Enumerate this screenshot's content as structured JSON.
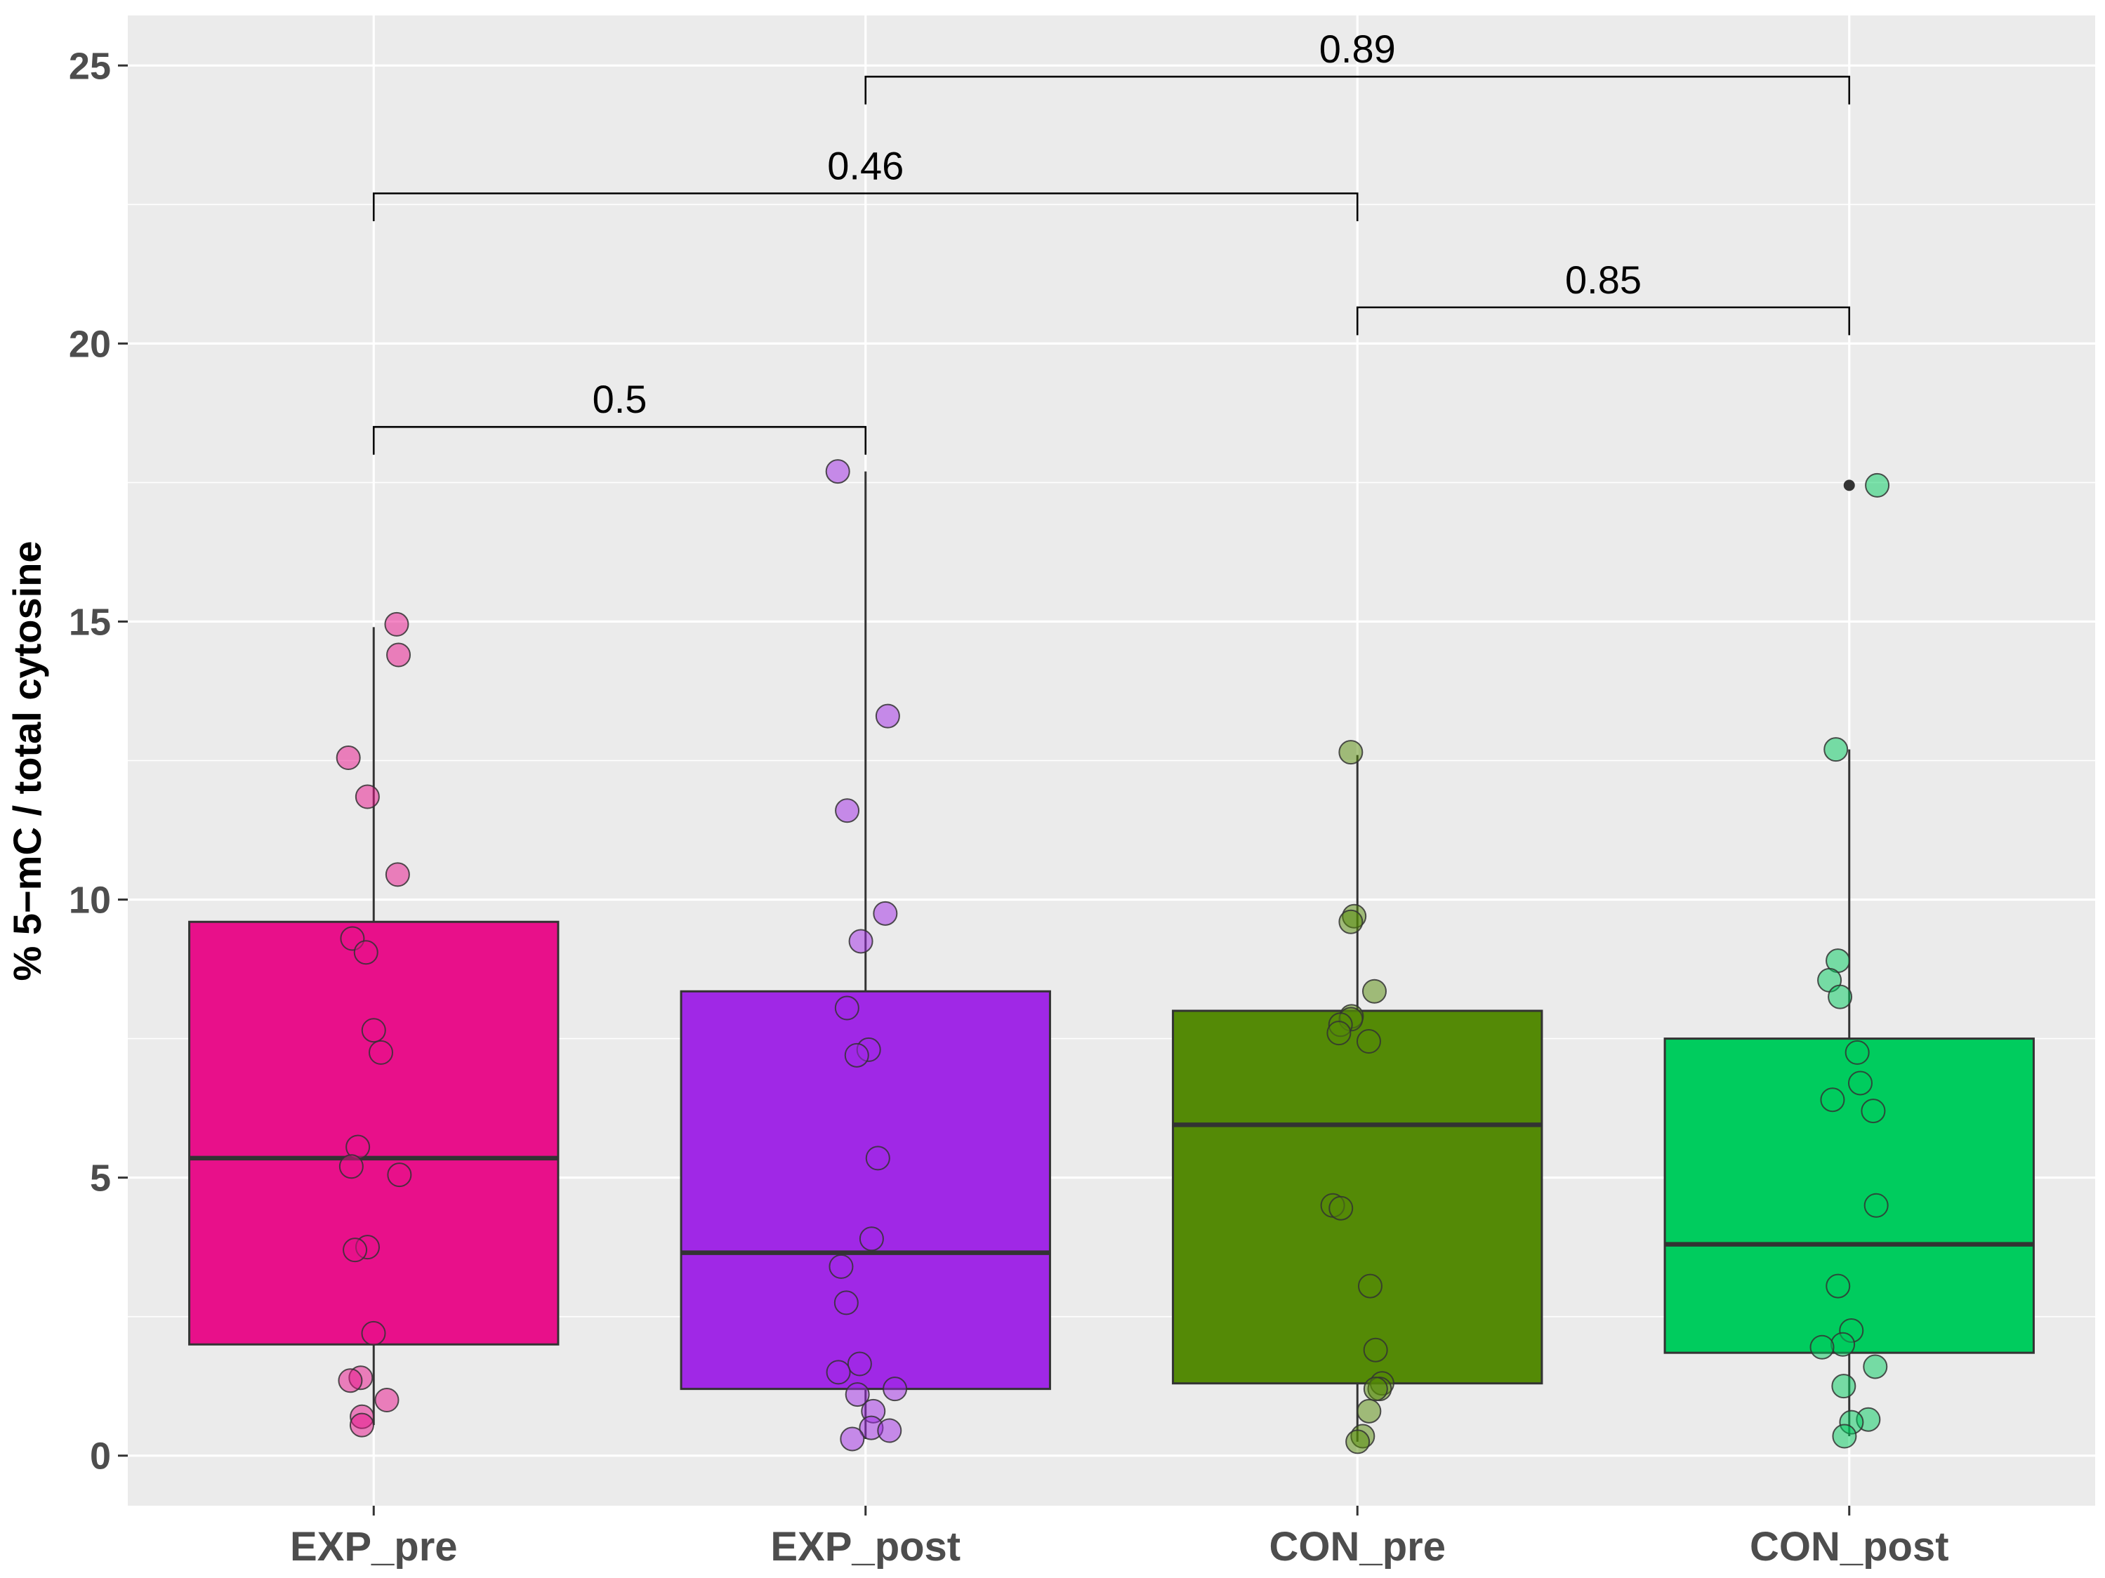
{
  "chart_data": {
    "type": "box",
    "ylabel": "% 5−mC / total cytosine",
    "xlabel": "",
    "ylim": [
      -0.9,
      25.9
    ],
    "yticks": [
      0,
      5,
      10,
      15,
      20,
      25
    ],
    "grid": true,
    "legend": "none",
    "categories": [
      "EXP_pre",
      "EXP_post",
      "CON_pre",
      "CON_post"
    ],
    "groups": [
      {
        "name": "EXP_pre",
        "color": "#e8108a",
        "q1": 2.0,
        "median": 5.35,
        "q3": 9.6,
        "whisker_low": 0.55,
        "whisker_high": 14.9,
        "outliers": [],
        "points": [
          14.95,
          14.4,
          12.55,
          11.85,
          10.45,
          9.3,
          9.05,
          7.65,
          7.25,
          5.55,
          5.2,
          5.05,
          3.75,
          3.7,
          2.2,
          1.4,
          1.35,
          1.0,
          0.7,
          0.55
        ]
      },
      {
        "name": "EXP_post",
        "color": "#a028e6",
        "q1": 1.2,
        "median": 3.65,
        "q3": 8.35,
        "whisker_low": 0.3,
        "whisker_high": 17.7,
        "outliers": [],
        "points": [
          17.7,
          13.3,
          11.6,
          9.75,
          9.25,
          8.05,
          7.3,
          7.2,
          5.35,
          3.9,
          3.4,
          2.75,
          1.65,
          1.5,
          1.2,
          1.1,
          0.8,
          0.5,
          0.45,
          0.3
        ]
      },
      {
        "name": "CON_pre",
        "color": "#548a06",
        "q1": 1.3,
        "median": 5.95,
        "q3": 8.0,
        "whisker_low": 0.25,
        "whisker_high": 12.6,
        "outliers": [],
        "points": [
          12.65,
          9.7,
          9.6,
          8.35,
          7.9,
          7.85,
          7.75,
          7.6,
          7.45,
          4.5,
          4.45,
          3.05,
          1.9,
          1.3,
          1.2,
          1.2,
          0.8,
          0.35,
          0.25
        ]
      },
      {
        "name": "CON_post",
        "color": "#00cc5e",
        "q1": 1.85,
        "median": 3.8,
        "q3": 7.5,
        "whisker_low": 0.35,
        "whisker_high": 12.7,
        "outliers": [
          17.45
        ],
        "points": [
          17.45,
          12.7,
          8.9,
          8.55,
          8.25,
          7.25,
          6.7,
          6.4,
          6.2,
          4.5,
          3.05,
          2.25,
          2.0,
          1.95,
          1.6,
          1.25,
          0.65,
          0.6,
          0.35
        ]
      }
    ],
    "comparisons": [
      {
        "from": "EXP_pre",
        "to": "EXP_post",
        "label": "0.5",
        "y": 18.5,
        "tick_low": 18.0
      },
      {
        "from": "CON_pre",
        "to": "CON_post",
        "label": "0.85",
        "y": 20.65,
        "tick_low": 20.15
      },
      {
        "from": "EXP_pre",
        "to": "CON_pre",
        "label": "0.46",
        "y": 22.7,
        "tick_low": 22.2
      },
      {
        "from": "EXP_post",
        "to": "CON_post",
        "label": "0.89",
        "y": 24.8,
        "tick_low": 24.3
      }
    ]
  }
}
